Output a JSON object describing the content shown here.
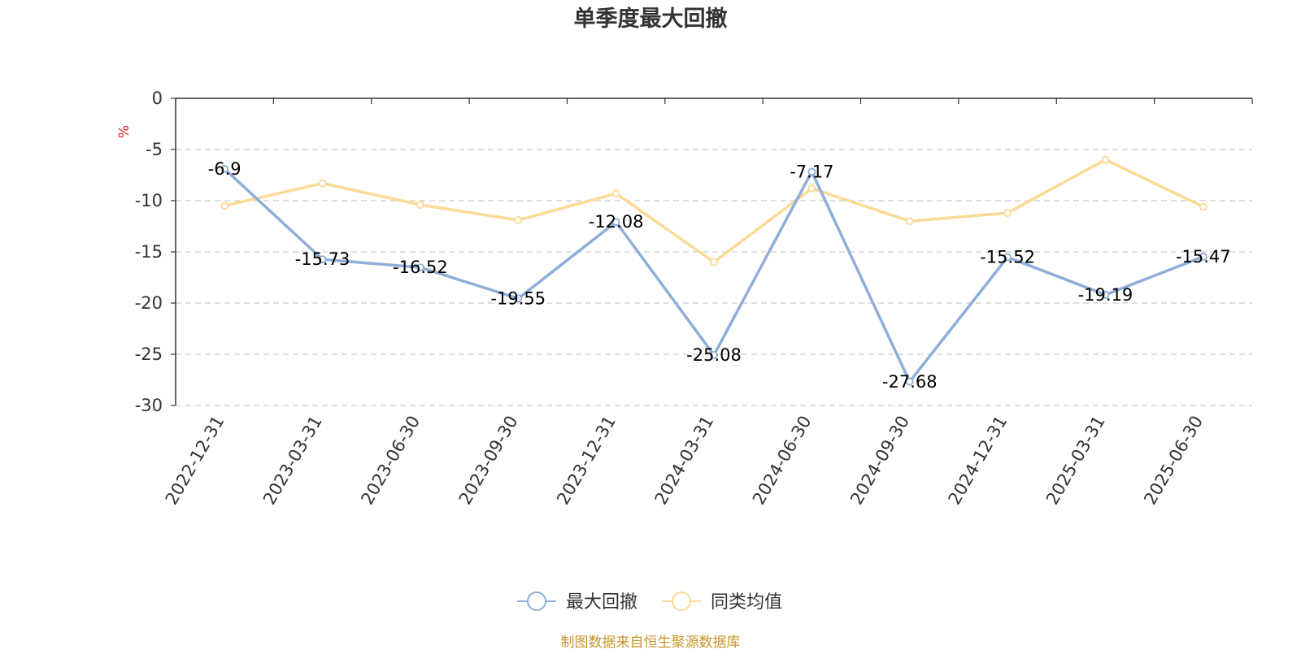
{
  "chart_data": {
    "type": "line",
    "title": "单季度最大回撤",
    "ylabel": "%",
    "ylim": [
      -30,
      0
    ],
    "yticks": [
      0,
      -5,
      -10,
      -15,
      -20,
      -25,
      -30
    ],
    "grid": true,
    "legend_position": "bottom",
    "categories": [
      "2022-12-31",
      "2023-03-31",
      "2023-06-30",
      "2023-09-30",
      "2023-12-31",
      "2024-03-31",
      "2024-06-30",
      "2024-09-30",
      "2024-12-31",
      "2025-03-31",
      "2025-06-30"
    ],
    "series": [
      {
        "name": "最大回撤",
        "color": "#8eaed9",
        "values": [
          -6.9,
          -15.73,
          -16.52,
          -19.55,
          -12.08,
          -25.08,
          -7.17,
          -27.68,
          -15.52,
          -19.19,
          -15.47
        ],
        "labels": [
          "-6.9",
          "-15.73",
          "-16.52",
          "-19.55",
          "-12.08",
          "-25.08",
          "-7.17",
          "-27.68",
          "-15.52",
          "-19.19",
          "-15.47"
        ]
      },
      {
        "name": "同类均值",
        "color": "#fcd995",
        "values": [
          -10.5,
          -8.3,
          -10.4,
          -11.9,
          -9.3,
          -16.0,
          -8.8,
          -12.0,
          -11.2,
          -6.0,
          -10.6
        ]
      }
    ],
    "source": "制图数据来自恒生聚源数据库",
    "source_color": "#c9952a",
    "unit_color": "#e02020"
  }
}
